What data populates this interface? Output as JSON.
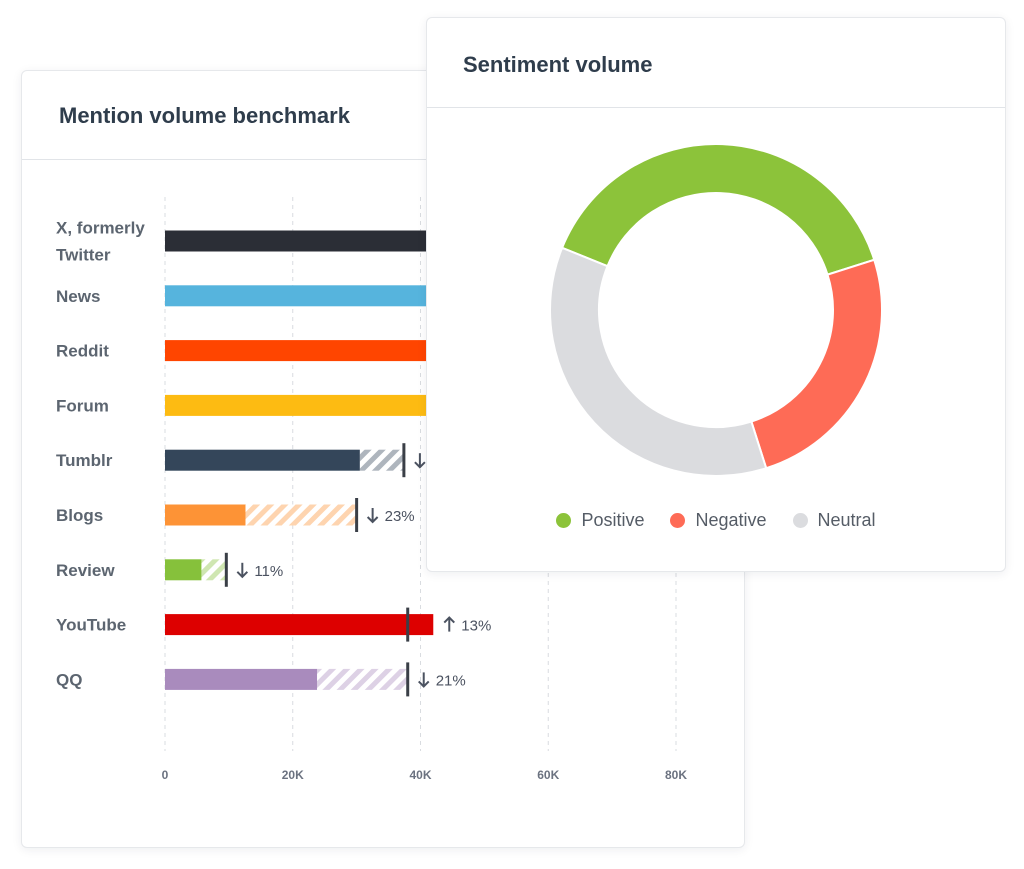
{
  "mention_card": {
    "title": "Mention volume benchmark"
  },
  "sentiment_card": {
    "title": "Sentiment volume"
  },
  "chart_data": [
    {
      "type": "bar",
      "orientation": "horizontal",
      "title": "Mention volume benchmark",
      "categories": [
        "X, formerly Twitter",
        "News",
        "Reddit",
        "Forum",
        "Tumblr",
        "Blogs",
        "Review",
        "YouTube",
        "QQ"
      ],
      "series": [
        {
          "values": [
            41000,
            41000,
            41000,
            41000,
            30500,
            12600,
            5700,
            42000,
            23800
          ]
        }
      ],
      "benchmark": [
        null,
        null,
        null,
        null,
        37400,
        30000,
        9600,
        38000,
        38000
      ],
      "changes": [
        null,
        null,
        null,
        null,
        {
          "direction": "down",
          "label": ""
        },
        {
          "direction": "down",
          "label": "23%"
        },
        {
          "direction": "down",
          "label": "11%"
        },
        {
          "direction": "up",
          "label": "13%"
        },
        {
          "direction": "down",
          "label": "21%"
        }
      ],
      "colors": [
        "#2b2e36",
        "#56b4dd",
        "#ff4500",
        "#fdbb12",
        "#34465a",
        "#fd9336",
        "#86c13b",
        "#dd0000",
        "#a98bbd"
      ],
      "xticks": [
        "0",
        "20K",
        "40K",
        "60K",
        "80K"
      ],
      "xlim": [
        0,
        80000
      ],
      "grid": true
    },
    {
      "type": "pie",
      "style": "donut",
      "title": "Sentiment volume",
      "labels": [
        "Positive",
        "Negative",
        "Neutral"
      ],
      "values": [
        39,
        25,
        36
      ],
      "colors": [
        "#8cc33a",
        "#fe6b56",
        "#dbdcdf"
      ],
      "legend": "bottom"
    }
  ]
}
